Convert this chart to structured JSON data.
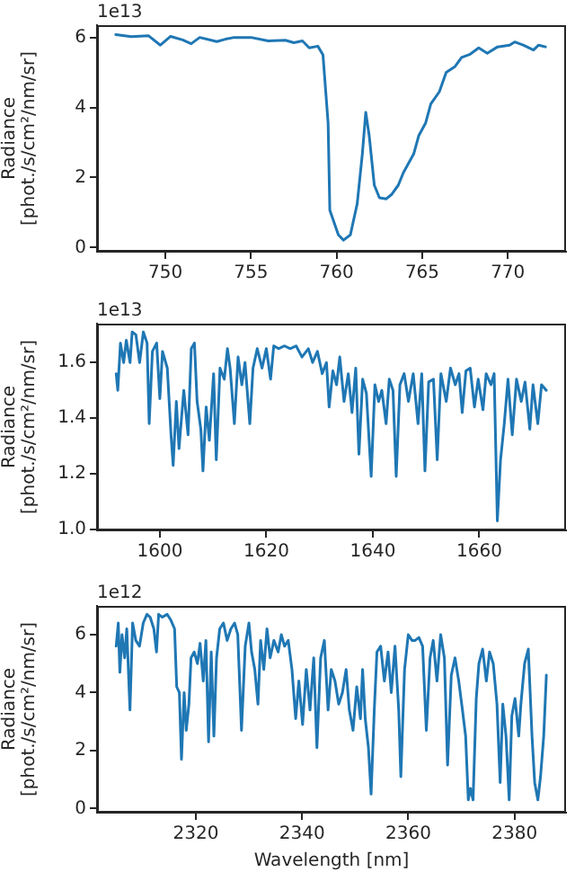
{
  "chart_data": [
    {
      "type": "line",
      "ylabel": "Radiance\n[phot./s/cm²/nm/sr]",
      "annotations": [
        "1e13"
      ],
      "xlim": [
        746.0,
        773.4
      ],
      "xticks": [
        750,
        755,
        760,
        765,
        770
      ],
      "ylim": [
        -0.12,
        6.35
      ],
      "yticks": [
        0,
        2,
        4,
        6
      ],
      "grid": false,
      "legend": false,
      "marker": "none",
      "line_style": "solid",
      "series": [
        {
          "color": "#1f77b4",
          "x": [
            747.1,
            748.0,
            749.0,
            749.7,
            750.3,
            751.0,
            751.5,
            752.0,
            753.0,
            753.5,
            754.0,
            755.0,
            756.0,
            757.0,
            757.5,
            758.0,
            758.4,
            758.9,
            759.2,
            759.5,
            759.6,
            760.1,
            760.4,
            760.8,
            761.2,
            761.5,
            761.7,
            761.9,
            762.2,
            762.5,
            762.9,
            763.2,
            763.6,
            763.9,
            764.5,
            764.8,
            765.2,
            765.5,
            766.0,
            766.4,
            766.9,
            767.3,
            767.8,
            768.3,
            768.8,
            769.4,
            770.1,
            770.4,
            770.9,
            771.5,
            771.8,
            772.2
          ],
          "values": [
            6.08,
            6.02,
            6.05,
            5.78,
            6.03,
            5.93,
            5.82,
            6.0,
            5.88,
            5.95,
            6.0,
            6.0,
            5.9,
            5.92,
            5.85,
            5.9,
            5.7,
            5.75,
            5.5,
            3.56,
            1.07,
            0.36,
            0.21,
            0.36,
            1.25,
            2.67,
            3.86,
            3.2,
            1.78,
            1.42,
            1.39,
            1.51,
            1.78,
            2.14,
            2.67,
            3.2,
            3.56,
            4.1,
            4.45,
            5.0,
            5.16,
            5.43,
            5.52,
            5.7,
            5.55,
            5.73,
            5.78,
            5.87,
            5.78,
            5.64,
            5.78,
            5.73
          ]
        }
      ]
    },
    {
      "type": "line",
      "ylabel": "Radiance\n[phot./s/cm²/nm/sr]",
      "annotations": [
        "1e13"
      ],
      "xlim": [
        1588.2,
        1676.3
      ],
      "xticks": [
        1600,
        1620,
        1640,
        1660
      ],
      "ylim": [
        0.996,
        1.74
      ],
      "yticks": [
        {
          "value": 1,
          "label": "1.0"
        },
        1.2,
        1.4,
        1.6
      ],
      "grid": false,
      "legend": false,
      "marker": "none",
      "line_style": "solid",
      "series": [
        {
          "color": "#1f77b4",
          "x": [
            1591.8,
            1592.1,
            1592.6,
            1593.2,
            1593.7,
            1594.4,
            1594.8,
            1595.5,
            1596.2,
            1596.9,
            1597.6,
            1598.0,
            1598.6,
            1599.4,
            1600.0,
            1600.5,
            1601.4,
            1602.1,
            1602.5,
            1603.1,
            1603.6,
            1604.5,
            1605.3,
            1605.9,
            1606.5,
            1607.0,
            1607.7,
            1608.1,
            1608.7,
            1609.3,
            1610.1,
            1610.6,
            1611.3,
            1612.1,
            1612.7,
            1613.2,
            1614.0,
            1614.7,
            1615.4,
            1616.0,
            1616.9,
            1617.5,
            1618.3,
            1619.2,
            1620.0,
            1620.8,
            1621.4,
            1622.3,
            1623.4,
            1624.5,
            1625.6,
            1626.7,
            1627.9,
            1628.7,
            1629.6,
            1630.5,
            1631.3,
            1631.8,
            1632.5,
            1633.2,
            1633.8,
            1634.6,
            1635.4,
            1636.1,
            1636.8,
            1637.4,
            1638.1,
            1638.8,
            1639.7,
            1640.4,
            1641.1,
            1641.7,
            1642.5,
            1643.1,
            1643.8,
            1644.4,
            1645.1,
            1645.9,
            1646.7,
            1647.6,
            1648.5,
            1649.2,
            1649.8,
            1650.5,
            1651.4,
            1652.1,
            1652.8,
            1653.8,
            1654.6,
            1655.5,
            1656.2,
            1656.8,
            1657.5,
            1658.3,
            1659.1,
            1659.8,
            1660.7,
            1661.3,
            1662.2,
            1662.8,
            1663.4,
            1664.0,
            1664.7,
            1665.4,
            1666.2,
            1667.0,
            1667.9,
            1668.6,
            1669.5,
            1670.1,
            1671.0,
            1671.7,
            1672.6
          ],
          "values": [
            1.56,
            1.5,
            1.67,
            1.6,
            1.68,
            1.6,
            1.71,
            1.7,
            1.6,
            1.71,
            1.67,
            1.38,
            1.64,
            1.67,
            1.47,
            1.64,
            1.58,
            1.34,
            1.23,
            1.46,
            1.29,
            1.5,
            1.34,
            1.65,
            1.67,
            1.46,
            1.36,
            1.21,
            1.44,
            1.32,
            1.56,
            1.25,
            1.58,
            1.54,
            1.65,
            1.58,
            1.38,
            1.62,
            1.52,
            1.6,
            1.38,
            1.58,
            1.65,
            1.58,
            1.65,
            1.54,
            1.66,
            1.65,
            1.66,
            1.65,
            1.66,
            1.62,
            1.65,
            1.6,
            1.64,
            1.56,
            1.6,
            1.44,
            1.57,
            1.52,
            1.62,
            1.46,
            1.56,
            1.42,
            1.58,
            1.27,
            1.54,
            1.49,
            1.19,
            1.52,
            1.46,
            1.5,
            1.38,
            1.54,
            1.5,
            1.19,
            1.52,
            1.56,
            1.46,
            1.56,
            1.38,
            1.56,
            1.21,
            1.53,
            1.54,
            1.25,
            1.56,
            1.46,
            1.58,
            1.52,
            1.56,
            1.42,
            1.57,
            1.58,
            1.44,
            1.54,
            1.43,
            1.56,
            1.52,
            1.56,
            1.03,
            1.25,
            1.38,
            1.54,
            1.34,
            1.54,
            1.46,
            1.53,
            1.36,
            1.52,
            1.38,
            1.52,
            1.5
          ]
        }
      ]
    },
    {
      "type": "line",
      "xlabel": "Wavelength [nm]",
      "ylabel": "Radiance\n[phot./s/cm²/nm/sr]",
      "annotations": [
        "1e12"
      ],
      "xlim": [
        2301.4,
        2389.7
      ],
      "xticks": [
        2320,
        2340,
        2360,
        2380
      ],
      "ylim": [
        -0.14,
        6.99
      ],
      "yticks": [
        0,
        2,
        4,
        6
      ],
      "grid": false,
      "legend": false,
      "marker": "none",
      "line_style": "solid",
      "series": [
        {
          "color": "#1f77b4",
          "x": [
            2305.0,
            2305.4,
            2305.7,
            2306.1,
            2306.6,
            2307.0,
            2307.6,
            2308.1,
            2308.7,
            2309.4,
            2310.1,
            2310.8,
            2311.4,
            2312.1,
            2312.6,
            2313.0,
            2313.7,
            2314.6,
            2315.3,
            2316.0,
            2316.4,
            2316.9,
            2317.3,
            2317.8,
            2318.2,
            2318.7,
            2319.1,
            2319.7,
            2320.3,
            2320.8,
            2321.4,
            2321.9,
            2322.4,
            2322.9,
            2323.4,
            2323.9,
            2324.5,
            2325.2,
            2325.9,
            2326.6,
            2327.3,
            2327.9,
            2328.6,
            2329.3,
            2330.0,
            2330.5,
            2331.1,
            2331.7,
            2332.2,
            2332.8,
            2333.4,
            2334.0,
            2334.7,
            2335.5,
            2336.1,
            2336.7,
            2337.4,
            2338.1,
            2338.8,
            2339.4,
            2340.1,
            2340.8,
            2341.5,
            2342.2,
            2342.8,
            2343.5,
            2344.2,
            2344.9,
            2345.5,
            2346.2,
            2346.9,
            2347.6,
            2348.3,
            2348.9,
            2349.6,
            2350.3,
            2351.0,
            2351.4,
            2351.9,
            2352.5,
            2353.0,
            2353.6,
            2354.1,
            2354.8,
            2355.5,
            2356.2,
            2356.8,
            2357.5,
            2358.2,
            2358.6,
            2359.3,
            2360.0,
            2360.7,
            2361.3,
            2362.0,
            2362.7,
            2363.4,
            2364.1,
            2364.7,
            2365.4,
            2366.1,
            2366.8,
            2367.4,
            2368.1,
            2368.8,
            2369.5,
            2370.2,
            2370.8,
            2371.3,
            2371.7,
            2372.2,
            2372.8,
            2373.3,
            2374.0,
            2374.7,
            2375.3,
            2376.0,
            2376.7,
            2377.3,
            2377.8,
            2378.4,
            2379.0,
            2379.5,
            2380.1,
            2380.8,
            2381.2,
            2381.9,
            2382.6,
            2383.3,
            2383.8,
            2384.4,
            2384.9,
            2385.5,
            2386.0
          ],
          "values": [
            5.6,
            6.4,
            4.7,
            6.0,
            5.2,
            6.2,
            3.4,
            6.4,
            5.8,
            5.6,
            6.4,
            6.7,
            6.6,
            6.2,
            5.4,
            6.7,
            6.6,
            6.7,
            6.5,
            6.2,
            4.2,
            4.0,
            1.7,
            4.0,
            2.7,
            3.6,
            5.2,
            5.4,
            5.0,
            5.7,
            4.4,
            5.8,
            2.3,
            5.4,
            2.5,
            5.2,
            6.2,
            6.4,
            5.8,
            6.2,
            6.4,
            6.0,
            2.7,
            5.6,
            6.4,
            5.4,
            4.8,
            3.6,
            5.8,
            4.8,
            6.2,
            5.2,
            5.8,
            5.4,
            6.0,
            5.6,
            5.8,
            4.8,
            3.1,
            4.4,
            2.9,
            4.8,
            3.4,
            5.2,
            2.1,
            5.2,
            5.8,
            3.4,
            4.8,
            4.4,
            3.6,
            4.0,
            4.8,
            3.4,
            2.7,
            4.2,
            3.1,
            4.8,
            3.1,
            2.1,
            0.5,
            3.4,
            5.4,
            5.6,
            4.4,
            5.4,
            4.0,
            5.6,
            3.4,
            1.1,
            4.8,
            6.0,
            5.8,
            5.8,
            5.9,
            5.6,
            2.7,
            5.2,
            5.8,
            4.4,
            6.0,
            5.2,
            1.5,
            4.6,
            5.2,
            4.4,
            3.4,
            2.5,
            0.3,
            0.7,
            0.3,
            3.8,
            5.0,
            5.5,
            4.4,
            5.4,
            5.0,
            3.6,
            0.9,
            3.6,
            2.5,
            0.3,
            3.2,
            3.8,
            2.5,
            3.6,
            5.0,
            5.5,
            2.5,
            0.9,
            0.3,
            1.1,
            2.5,
            4.6
          ]
        }
      ]
    }
  ]
}
